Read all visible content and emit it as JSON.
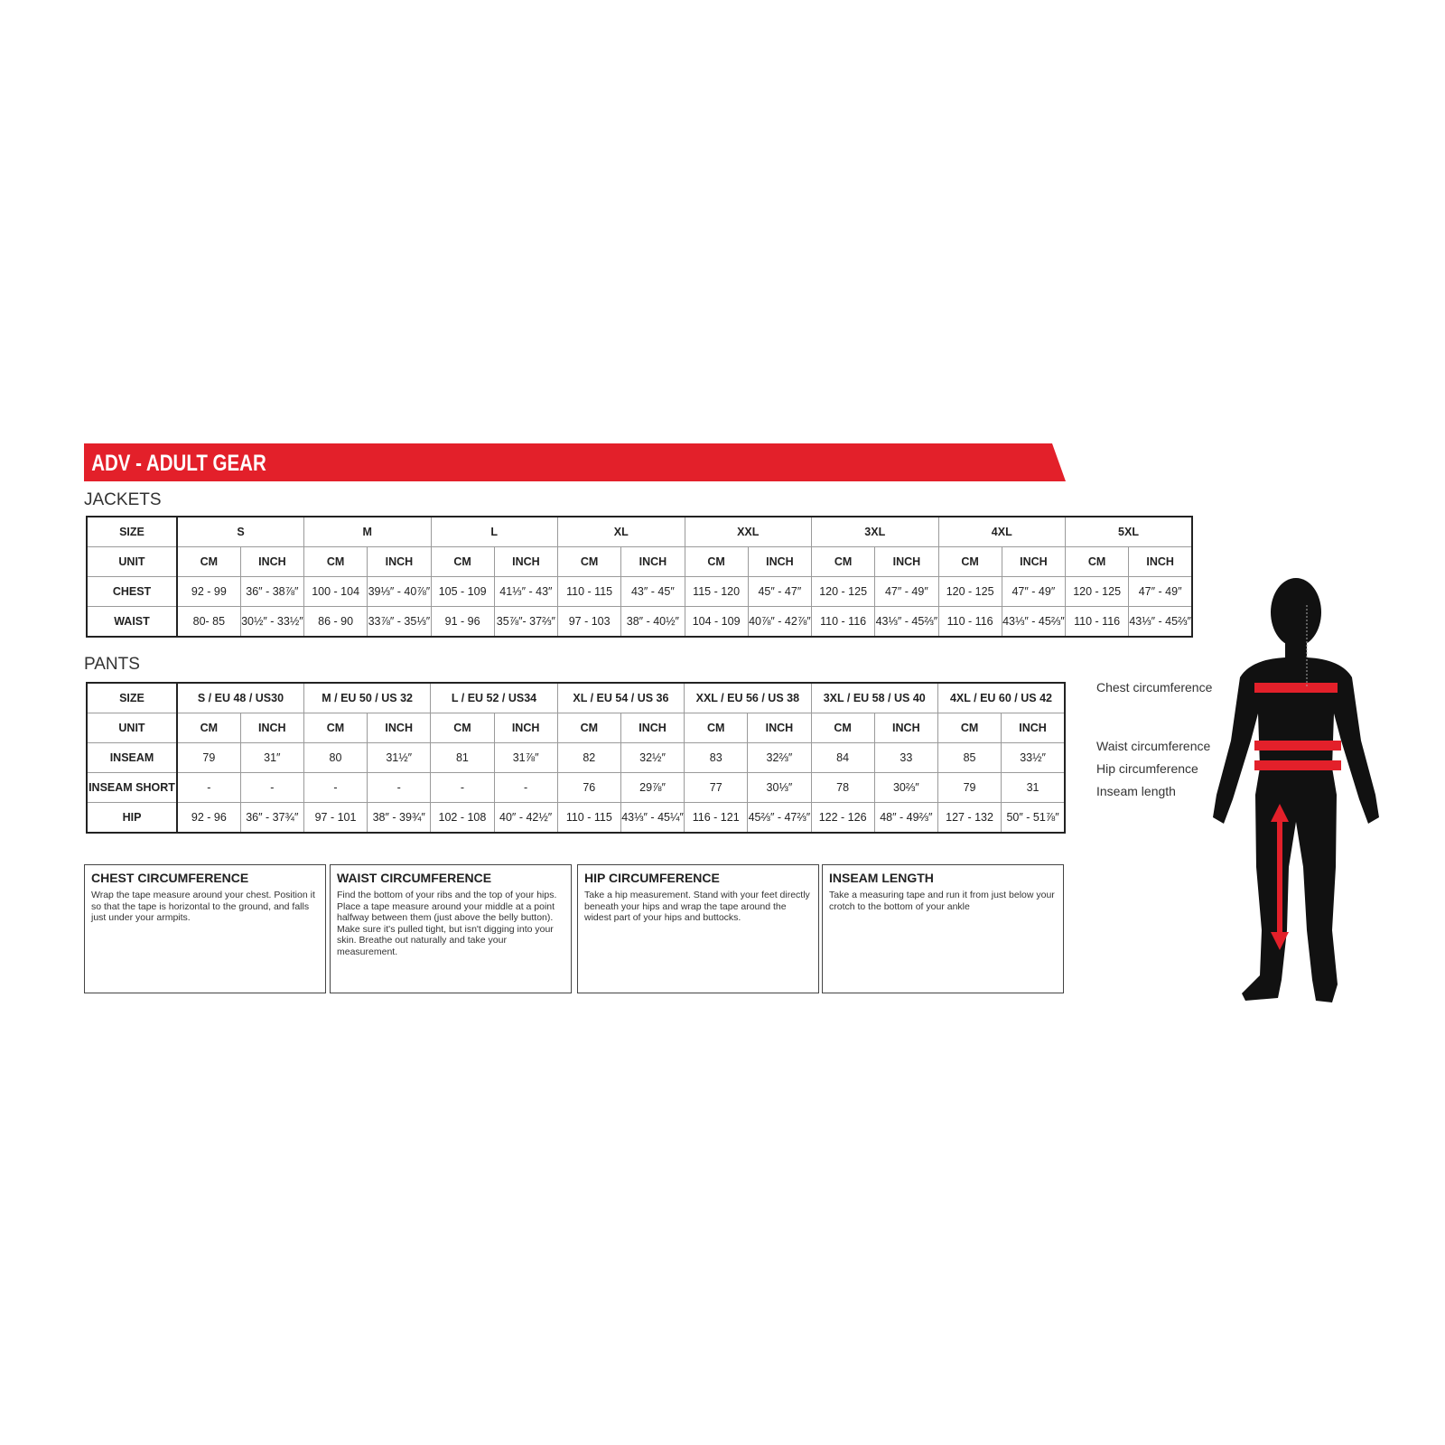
{
  "header": {
    "title": "ADV - ADULT GEAR"
  },
  "jackets": {
    "title": "JACKETS",
    "size_label": "SIZE",
    "sizes": [
      "S",
      "M",
      "L",
      "XL",
      "XXL",
      "3XL",
      "4XL",
      "5XL"
    ],
    "unit_label": "UNIT",
    "units": [
      "CM",
      "INCH",
      "CM",
      "INCH",
      "CM",
      "INCH",
      "CM",
      "INCH",
      "CM",
      "INCH",
      "CM",
      "INCH",
      "CM",
      "INCH",
      "CM",
      "INCH"
    ],
    "rows": [
      {
        "label": "CHEST",
        "cells": [
          "92 - 99",
          "36″ - 38⅞″",
          "100 - 104",
          "39⅓″ - 40⅞″",
          "105 - 109",
          "41⅓″ - 43″",
          "110 - 115",
          "43″ - 45″",
          "115 - 120",
          "45″ - 47″",
          "120 - 125",
          "47″ - 49″",
          "120 - 125",
          "47″ - 49″",
          "120 - 125",
          "47″ - 49″"
        ]
      },
      {
        "label": "WAIST",
        "cells": [
          "80- 85",
          "30½″ - 33½″",
          "86 - 90",
          "33⅞″ - 35⅓″",
          "91 - 96",
          "35⅞″- 37⅔″",
          "97 - 103",
          "38″ - 40½″",
          "104 - 109",
          "40⅞″ - 42⅞″",
          "110 - 116",
          "43⅓″ - 45⅔″",
          "110 - 116",
          "43⅓″ - 45⅔″",
          "110 - 116",
          "43⅓″ - 45⅔″"
        ]
      }
    ]
  },
  "pants": {
    "title": "PANTS",
    "size_label": "SIZE",
    "sizes": [
      "S / EU 48 / US30",
      "M / EU 50 / US 32",
      "L / EU 52 / US34",
      "XL / EU 54 / US 36",
      "XXL / EU 56 / US 38",
      "3XL / EU 58 / US 40",
      "4XL / EU 60 / US 42"
    ],
    "unit_label": "UNIT",
    "units": [
      "CM",
      "INCH",
      "CM",
      "INCH",
      "CM",
      "INCH",
      "CM",
      "INCH",
      "CM",
      "INCH",
      "CM",
      "INCH",
      "CM",
      "INCH"
    ],
    "rows": [
      {
        "label": "INSEAM",
        "cells": [
          "79",
          "31″",
          "80",
          "31½″",
          "81",
          "31⅞″",
          "82",
          "32½″",
          "83",
          "32⅔″",
          "84",
          "33",
          "85",
          "33½″"
        ]
      },
      {
        "label": "INSEAM SHORT",
        "cells": [
          "-",
          "-",
          "-",
          "-",
          "-",
          "-",
          "76",
          "29⅞″",
          "77",
          "30⅓″",
          "78",
          "30⅔″",
          "79",
          "31"
        ]
      },
      {
        "label": "HIP",
        "cells": [
          "92 - 96",
          "36″ - 37¾″",
          "97 - 101",
          "38″ - 39¾″",
          "102 - 108",
          "40″ - 42½″",
          "110 - 115",
          "43⅓″ - 45¼″",
          "116 - 121",
          "45⅔″ - 47⅔″",
          "122 - 126",
          "48″ - 49⅔″",
          "127 - 132",
          "50″ - 51⅞″"
        ]
      }
    ]
  },
  "boxes": [
    {
      "title": "CHEST CIRCUMFERENCE",
      "text": "Wrap the tape measure around your chest. Position it so that the tape is horizontal to the ground, and falls just under your armpits."
    },
    {
      "title": "WAIST CIRCUMFERENCE",
      "text": "Find the bottom of your ribs and the top of your hips. Place a tape measure around your middle at a point halfway between them (just above the belly button). Make sure it's pulled tight, but isn't digging into your skin. Breathe out naturally and take your measurement."
    },
    {
      "title": "HIP CIRCUMFERENCE",
      "text": "Take a hip measurement. Stand with your feet directly beneath your hips and wrap the tape around the widest part of your hips and buttocks."
    },
    {
      "title": "INSEAM LENGTH",
      "text": "Take a measuring tape and run it from just below your crotch to the bottom of your ankle"
    }
  ],
  "figure": {
    "labels": [
      "Chest circumference",
      "Waist circumference",
      "Hip circumference",
      "Inseam length"
    ]
  }
}
